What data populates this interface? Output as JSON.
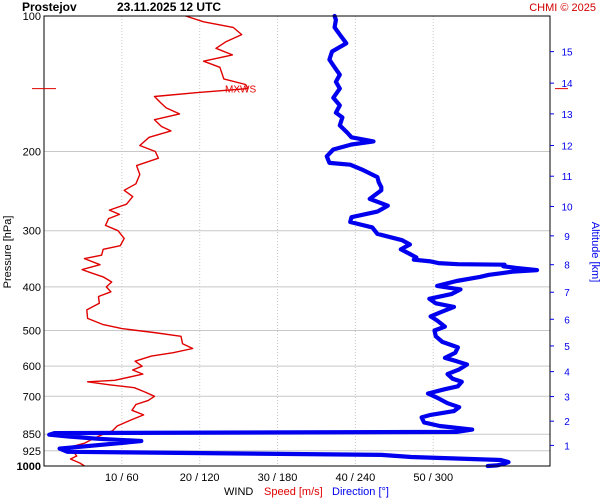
{
  "header": {
    "station": "Prostejov",
    "datetime": "23.11.2025 12 UTC",
    "copyright": "CHMI © 2025"
  },
  "colors": {
    "speed": "#e00000",
    "direction": "#0000ee",
    "grid": "#c8c8c8",
    "frame": "#000000"
  },
  "labels": {
    "mxws": "MXWS",
    "wind": "WIND",
    "speed": "Speed [m/s]",
    "direction": "Direction [°]"
  },
  "chart_data": {
    "type": "line",
    "y_axis": {
      "label": "Pressure [hPa]",
      "scale": "log",
      "range": [
        100,
        1000
      ],
      "ticks": [
        100,
        200,
        300,
        400,
        500,
        600,
        700,
        850,
        925,
        1000
      ],
      "bold_ticks": [
        1000
      ]
    },
    "x_axis": {
      "ticks": [
        "10 / 60",
        "20 / 120",
        "30 / 180",
        "40 / 240",
        "50 / 300"
      ],
      "speed_range": [
        0,
        65
      ],
      "direction_range": [
        0,
        390
      ]
    },
    "altitude_axis": {
      "label": "Altitude [km]",
      "ticks": [
        "1",
        "2",
        "3",
        "4",
        "5",
        "6",
        "7",
        "8",
        "9",
        "10",
        "11",
        "12",
        "13",
        "14",
        "15"
      ],
      "tick_pressures": [
        900,
        795,
        701,
        617,
        541,
        472,
        411,
        357,
        308,
        265,
        227,
        194,
        165,
        141,
        120
      ]
    },
    "max_wind_pressure": 145,
    "series": [
      {
        "name": "Speed [m/s]",
        "unit": "m/s",
        "points": [
          [
            5.2,
            1000
          ],
          [
            4.6,
            985
          ],
          [
            3.4,
            965
          ],
          [
            4.2,
            950
          ],
          [
            3.9,
            935
          ],
          [
            2.6,
            920
          ],
          [
            3.6,
            905
          ],
          [
            5.2,
            890
          ],
          [
            6.3,
            870
          ],
          [
            7.6,
            850
          ],
          [
            8.8,
            835
          ],
          [
            9.4,
            815
          ],
          [
            11.2,
            790
          ],
          [
            12.8,
            770
          ],
          [
            11.3,
            752
          ],
          [
            11.8,
            730
          ],
          [
            13.4,
            715
          ],
          [
            14.2,
            700
          ],
          [
            13.0,
            685
          ],
          [
            11.6,
            670
          ],
          [
            8.4,
            660
          ],
          [
            5.6,
            650
          ],
          [
            9.1,
            645
          ],
          [
            12.7,
            625
          ],
          [
            11.4,
            612
          ],
          [
            12.6,
            600
          ],
          [
            11.7,
            585
          ],
          [
            13.8,
            570
          ],
          [
            16.6,
            560
          ],
          [
            19.1,
            548
          ],
          [
            17.8,
            535
          ],
          [
            17.6,
            515
          ],
          [
            14.1,
            505
          ],
          [
            10.0,
            495
          ],
          [
            7.6,
            485
          ],
          [
            5.6,
            470
          ],
          [
            5.5,
            450
          ],
          [
            7.1,
            435
          ],
          [
            7.0,
            420
          ],
          [
            8.6,
            410
          ],
          [
            8.0,
            400
          ],
          [
            8.7,
            390
          ],
          [
            7.6,
            380
          ],
          [
            6.0,
            372
          ],
          [
            4.9,
            366
          ],
          [
            7.2,
            357
          ],
          [
            5.2,
            346
          ],
          [
            7.4,
            340
          ],
          [
            7.6,
            330
          ],
          [
            9.8,
            324
          ],
          [
            10.3,
            312
          ],
          [
            9.5,
            300
          ],
          [
            7.9,
            292
          ],
          [
            8.3,
            282
          ],
          [
            9.7,
            276
          ],
          [
            8.4,
            270
          ],
          [
            10.6,
            262
          ],
          [
            11.4,
            252
          ],
          [
            10.3,
            244
          ],
          [
            11.8,
            236
          ],
          [
            12.3,
            225
          ],
          [
            11.9,
            215
          ],
          [
            14.7,
            207
          ],
          [
            14.3,
            200
          ],
          [
            12.3,
            194
          ],
          [
            13.5,
            186
          ],
          [
            16.3,
            180
          ],
          [
            15.1,
            176
          ],
          [
            14.2,
            170
          ],
          [
            17.4,
            165
          ],
          [
            15.7,
            160
          ],
          [
            15.0,
            156
          ],
          [
            14.2,
            151
          ],
          [
            19.7,
            148
          ],
          [
            26.2,
            145
          ],
          [
            25.9,
            142
          ],
          [
            23.1,
            138
          ],
          [
            22.6,
            130
          ],
          [
            20.5,
            126
          ],
          [
            24.2,
            122
          ],
          [
            22.1,
            118
          ],
          [
            23.4,
            114
          ],
          [
            25.4,
            110
          ],
          [
            24.3,
            106
          ],
          [
            20.5,
            103
          ],
          [
            18.2,
            100
          ]
        ]
      },
      {
        "name": "Direction [°]",
        "unit": "°",
        "points": [
          [
            342,
            1000
          ],
          [
            349,
            997
          ],
          [
            354,
            990
          ],
          [
            358,
            980
          ],
          [
            352,
            970
          ],
          [
            283,
            955
          ],
          [
            260,
            945
          ],
          [
            18,
            930
          ],
          [
            12,
            915
          ],
          [
            58,
            890
          ],
          [
            75,
            880
          ],
          [
            42,
            870
          ],
          [
            19,
            860
          ],
          [
            4,
            852
          ],
          [
            8,
            845
          ],
          [
            318,
            840
          ],
          [
            330,
            830
          ],
          [
            305,
            815
          ],
          [
            293,
            800
          ],
          [
            291,
            780
          ],
          [
            298,
            770
          ],
          [
            316,
            755
          ],
          [
            320,
            740
          ],
          [
            311,
            725
          ],
          [
            303,
            705
          ],
          [
            296,
            690
          ],
          [
            309,
            675
          ],
          [
            319,
            665
          ],
          [
            322,
            650
          ],
          [
            315,
            640
          ],
          [
            311,
            625
          ],
          [
            320,
            610
          ],
          [
            326,
            595
          ],
          [
            318,
            585
          ],
          [
            309,
            575
          ],
          [
            317,
            560
          ],
          [
            319,
            545
          ],
          [
            307,
            530
          ],
          [
            302,
            515
          ],
          [
            301,
            500
          ],
          [
            309,
            490
          ],
          [
            303,
            475
          ],
          [
            298,
            465
          ],
          [
            306,
            455
          ],
          [
            316,
            443
          ],
          [
            302,
            435
          ],
          [
            297,
            425
          ],
          [
            314,
            415
          ],
          [
            321,
            405
          ],
          [
            303,
            398
          ],
          [
            318,
            388
          ],
          [
            336,
            380
          ],
          [
            343,
            376
          ],
          [
            352,
            373
          ],
          [
            361,
            370
          ],
          [
            380,
            367
          ],
          [
            364,
            363
          ],
          [
            354,
            360
          ],
          [
            355,
            357
          ],
          [
            319,
            356
          ],
          [
            304,
            354
          ],
          [
            298,
            351
          ],
          [
            285,
            348
          ],
          [
            287,
            344
          ],
          [
            282,
            338
          ],
          [
            275,
            330
          ],
          [
            282,
            322
          ],
          [
            276,
            315
          ],
          [
            257,
            305
          ],
          [
            253,
            295
          ],
          [
            236,
            287
          ],
          [
            237,
            280
          ],
          [
            257,
            272
          ],
          [
            265,
            264
          ],
          [
            251,
            255
          ],
          [
            260,
            244
          ],
          [
            260,
            240
          ],
          [
            258,
            234
          ],
          [
            257,
            228
          ],
          [
            246,
            220
          ],
          [
            236,
            214
          ],
          [
            220,
            212
          ],
          [
            218,
            205
          ],
          [
            223,
            198
          ],
          [
            237,
            193
          ],
          [
            254,
            190
          ],
          [
            237,
            186
          ],
          [
            234,
            182
          ],
          [
            228,
            175
          ],
          [
            230,
            168
          ],
          [
            225,
            164
          ],
          [
            228,
            158
          ],
          [
            223,
            152
          ],
          [
            228,
            145
          ],
          [
            225,
            140
          ],
          [
            228,
            135
          ],
          [
            224,
            130
          ],
          [
            220,
            125
          ],
          [
            222,
            120
          ],
          [
            233,
            115
          ],
          [
            228,
            110
          ],
          [
            224,
            106
          ],
          [
            225,
            102
          ],
          [
            224,
            100
          ]
        ]
      }
    ]
  }
}
